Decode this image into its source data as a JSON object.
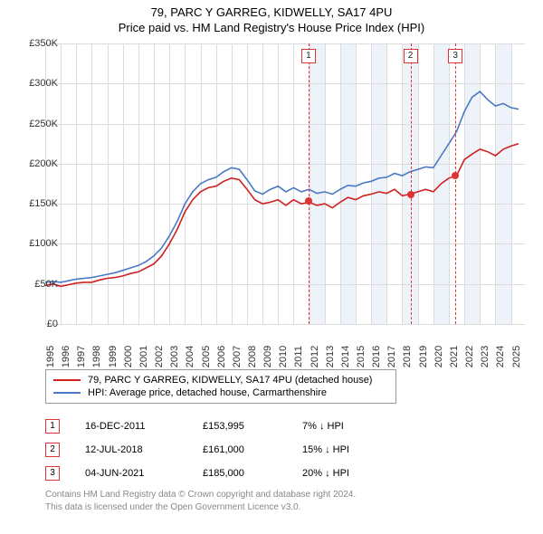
{
  "title_line1": "79, PARC Y GARREG, KIDWELLY, SA17 4PU",
  "title_line2": "Price paid vs. HM Land Registry's House Price Index (HPI)",
  "chart": {
    "type": "line",
    "background_color": "#ffffff",
    "gridline_color": "#dcdcdc",
    "shade_color": "#eef3fa",
    "x_year_min": 1995,
    "x_year_max": 2025.9,
    "y_min": 0,
    "y_max": 350000,
    "y_ticks": [
      0,
      50000,
      100000,
      150000,
      200000,
      250000,
      300000,
      350000
    ],
    "y_tick_labels": [
      "£0",
      "£50K",
      "£100K",
      "£150K",
      "£200K",
      "£250K",
      "£300K",
      "£350K"
    ],
    "x_ticks": [
      1995,
      1996,
      1997,
      1998,
      1999,
      2000,
      2001,
      2002,
      2003,
      2004,
      2005,
      2006,
      2007,
      2008,
      2009,
      2010,
      2011,
      2012,
      2013,
      2014,
      2015,
      2016,
      2017,
      2018,
      2019,
      2020,
      2021,
      2022,
      2023,
      2024,
      2025
    ],
    "shaded_years": [
      2012,
      2013,
      2014,
      2015,
      2016,
      2017,
      2018,
      2019,
      2020,
      2021,
      2022,
      2023,
      2024,
      2025
    ],
    "series": [
      {
        "name": "price_paid",
        "color": "#d02020",
        "width": 1.6,
        "points": [
          [
            1995.0,
            48
          ],
          [
            1995.5,
            50
          ],
          [
            1996.0,
            47
          ],
          [
            1996.5,
            49
          ],
          [
            1997.0,
            51
          ],
          [
            1997.5,
            52
          ],
          [
            1998.0,
            52
          ],
          [
            1998.5,
            55
          ],
          [
            1999.0,
            57
          ],
          [
            1999.5,
            58
          ],
          [
            2000.0,
            60
          ],
          [
            2000.5,
            63
          ],
          [
            2001.0,
            65
          ],
          [
            2001.5,
            70
          ],
          [
            2002.0,
            75
          ],
          [
            2002.5,
            85
          ],
          [
            2003.0,
            100
          ],
          [
            2003.5,
            118
          ],
          [
            2004.0,
            140
          ],
          [
            2004.5,
            155
          ],
          [
            2005.0,
            165
          ],
          [
            2005.5,
            170
          ],
          [
            2006.0,
            172
          ],
          [
            2006.5,
            178
          ],
          [
            2007.0,
            182
          ],
          [
            2007.5,
            180
          ],
          [
            2008.0,
            168
          ],
          [
            2008.5,
            155
          ],
          [
            2009.0,
            150
          ],
          [
            2009.5,
            152
          ],
          [
            2010.0,
            155
          ],
          [
            2010.5,
            148
          ],
          [
            2011.0,
            155
          ],
          [
            2011.5,
            150
          ],
          [
            2012.0,
            152
          ],
          [
            2012.5,
            148
          ],
          [
            2013.0,
            150
          ],
          [
            2013.5,
            145
          ],
          [
            2014.0,
            152
          ],
          [
            2014.5,
            158
          ],
          [
            2015.0,
            155
          ],
          [
            2015.5,
            160
          ],
          [
            2016.0,
            162
          ],
          [
            2016.5,
            165
          ],
          [
            2017.0,
            163
          ],
          [
            2017.5,
            168
          ],
          [
            2018.0,
            160
          ],
          [
            2018.5,
            162
          ],
          [
            2019.0,
            165
          ],
          [
            2019.5,
            168
          ],
          [
            2020.0,
            165
          ],
          [
            2020.5,
            175
          ],
          [
            2021.0,
            182
          ],
          [
            2021.5,
            185
          ],
          [
            2022.0,
            205
          ],
          [
            2022.5,
            212
          ],
          [
            2023.0,
            218
          ],
          [
            2023.5,
            215
          ],
          [
            2024.0,
            210
          ],
          [
            2024.5,
            218
          ],
          [
            2025.0,
            222
          ],
          [
            2025.5,
            225
          ]
        ]
      },
      {
        "name": "hpi",
        "color": "#4a78c4",
        "width": 1.6,
        "points": [
          [
            1995.0,
            52
          ],
          [
            1995.5,
            53
          ],
          [
            1996.0,
            52
          ],
          [
            1996.5,
            54
          ],
          [
            1997.0,
            56
          ],
          [
            1997.5,
            57
          ],
          [
            1998.0,
            58
          ],
          [
            1998.5,
            60
          ],
          [
            1999.0,
            62
          ],
          [
            1999.5,
            64
          ],
          [
            2000.0,
            67
          ],
          [
            2000.5,
            70
          ],
          [
            2001.0,
            73
          ],
          [
            2001.5,
            78
          ],
          [
            2002.0,
            85
          ],
          [
            2002.5,
            95
          ],
          [
            2003.0,
            110
          ],
          [
            2003.5,
            128
          ],
          [
            2004.0,
            150
          ],
          [
            2004.5,
            165
          ],
          [
            2005.0,
            175
          ],
          [
            2005.5,
            180
          ],
          [
            2006.0,
            183
          ],
          [
            2006.5,
            190
          ],
          [
            2007.0,
            195
          ],
          [
            2007.5,
            193
          ],
          [
            2008.0,
            180
          ],
          [
            2008.5,
            166
          ],
          [
            2009.0,
            162
          ],
          [
            2009.5,
            168
          ],
          [
            2010.0,
            172
          ],
          [
            2010.5,
            165
          ],
          [
            2011.0,
            170
          ],
          [
            2011.5,
            165
          ],
          [
            2012.0,
            168
          ],
          [
            2012.5,
            163
          ],
          [
            2013.0,
            165
          ],
          [
            2013.5,
            162
          ],
          [
            2014.0,
            168
          ],
          [
            2014.5,
            173
          ],
          [
            2015.0,
            172
          ],
          [
            2015.5,
            176
          ],
          [
            2016.0,
            178
          ],
          [
            2016.5,
            182
          ],
          [
            2017.0,
            183
          ],
          [
            2017.5,
            188
          ],
          [
            2018.0,
            185
          ],
          [
            2018.5,
            190
          ],
          [
            2019.0,
            193
          ],
          [
            2019.5,
            196
          ],
          [
            2020.0,
            195
          ],
          [
            2020.5,
            210
          ],
          [
            2021.0,
            225
          ],
          [
            2021.5,
            240
          ],
          [
            2022.0,
            265
          ],
          [
            2022.5,
            283
          ],
          [
            2023.0,
            290
          ],
          [
            2023.5,
            280
          ],
          [
            2024.0,
            272
          ],
          [
            2024.5,
            275
          ],
          [
            2025.0,
            270
          ],
          [
            2025.5,
            268
          ]
        ]
      }
    ],
    "markers": [
      {
        "n": "1",
        "year": 2011.96,
        "price_k": 153.995
      },
      {
        "n": "2",
        "year": 2018.53,
        "price_k": 161.0
      },
      {
        "n": "3",
        "year": 2021.42,
        "price_k": 185.0
      }
    ]
  },
  "legend": {
    "items": [
      {
        "color": "#d02020",
        "label": "79, PARC Y GARREG, KIDWELLY, SA17 4PU (detached house)"
      },
      {
        "color": "#4a78c4",
        "label": "HPI: Average price, detached house, Carmarthenshire"
      }
    ]
  },
  "table": {
    "rows": [
      {
        "n": "1",
        "date": "16-DEC-2011",
        "price": "£153,995",
        "pct": "7% ↓ HPI"
      },
      {
        "n": "2",
        "date": "12-JUL-2018",
        "price": "£161,000",
        "pct": "15% ↓ HPI"
      },
      {
        "n": "3",
        "date": "04-JUN-2021",
        "price": "£185,000",
        "pct": "20% ↓ HPI"
      }
    ]
  },
  "footer_line1": "Contains HM Land Registry data © Crown copyright and database right 2024.",
  "footer_line2": "This data is licensed under the Open Government Licence v3.0."
}
